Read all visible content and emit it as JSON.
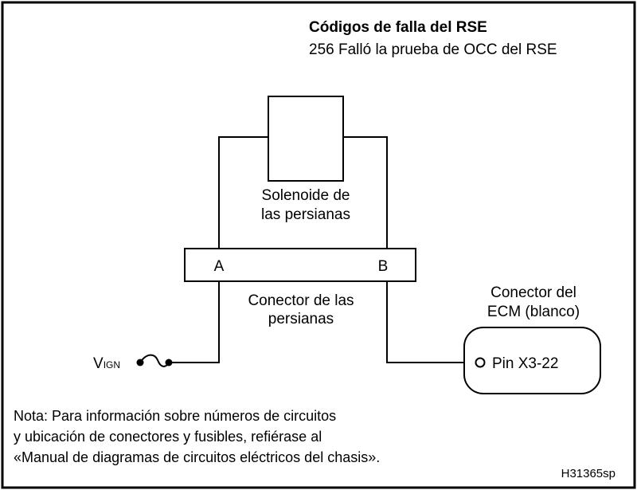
{
  "header": {
    "title": "Códigos de falla del RSE",
    "subtitle": "256 Falló la prueba de OCC del RSE"
  },
  "solenoid": {
    "line1": "Solenoide de",
    "line2": "las persianas"
  },
  "connector": {
    "pin_a": "A",
    "pin_b": "B",
    "line1": "Conector de las",
    "line2": "persianas"
  },
  "ecm": {
    "line1": "Conector del",
    "line2": "ECM (blanco)",
    "pin": "Pin X3-22"
  },
  "vign": {
    "main": "V",
    "subscript": "IGN"
  },
  "note": {
    "line1": "Nota: Para información sobre números de circuitos",
    "line2": "y ubicación de conectores y fusibles, refiérase al",
    "line3": "«Manual de diagramas de circuitos eléctricos del chasis»."
  },
  "figure_code": "H31365sp"
}
